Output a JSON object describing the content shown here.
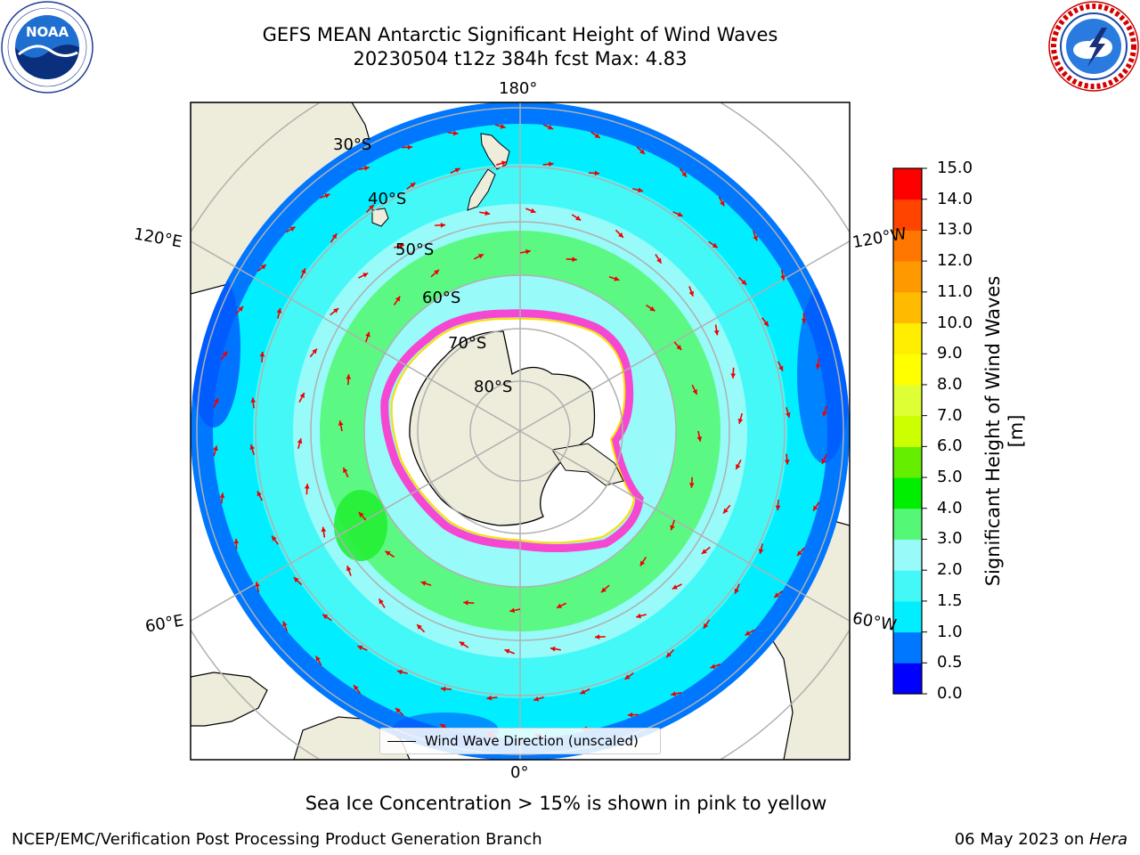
{
  "title": {
    "line1": "GEFS MEAN Antarctic Significant Height of Wind Waves",
    "line2": "20230504 t12z 384h fcst   Max: 4.83"
  },
  "logos": {
    "left": {
      "name": "noaa-logo",
      "text": "NOAA"
    },
    "right": {
      "name": "nws-logo"
    }
  },
  "map": {
    "projection": "south-polar-stereographic",
    "lat_labels": [
      "30°S",
      "40°S",
      "50°S",
      "60°S",
      "70°S",
      "80°S"
    ],
    "lon_labels": {
      "top": "180°",
      "upper_left": "120°E",
      "upper_right": "120°W",
      "lower_left": "60°E",
      "lower_right": "60°W",
      "bottom": "0°"
    },
    "colors": {
      "land": "#eeecdb",
      "sea_ice": "#ff33cc",
      "arrows": "#ee0000",
      "gridlines": "#b0b0b0"
    },
    "legend": "Wind Wave Direction (unscaled)"
  },
  "colorbar": {
    "title": "Significant Height of Wind Waves [m]",
    "ticks": [
      "0.0",
      "0.5",
      "1.0",
      "1.5",
      "2.0",
      "3.0",
      "4.0",
      "5.0",
      "6.0",
      "7.0",
      "8.0",
      "9.0",
      "10.0",
      "11.0",
      "12.0",
      "13.0",
      "14.0",
      "15.0"
    ],
    "colors": [
      "#0000ff",
      "#0077ff",
      "#00eeff",
      "#44f8f8",
      "#99fafa",
      "#55f777",
      "#00ee00",
      "#66ee00",
      "#ccff00",
      "#ddff33",
      "#ffff00",
      "#ffee00",
      "#ffbb00",
      "#ff9900",
      "#ff7700",
      "#ff4400",
      "#ff0000"
    ]
  },
  "caption": "Sea Ice Concentration > 15% is shown in pink to yellow",
  "footer": {
    "left": "NCEP/EMC/Verification Post Processing Product Generation Branch",
    "date": "06 May 2023 on ",
    "machine": "Hera"
  }
}
